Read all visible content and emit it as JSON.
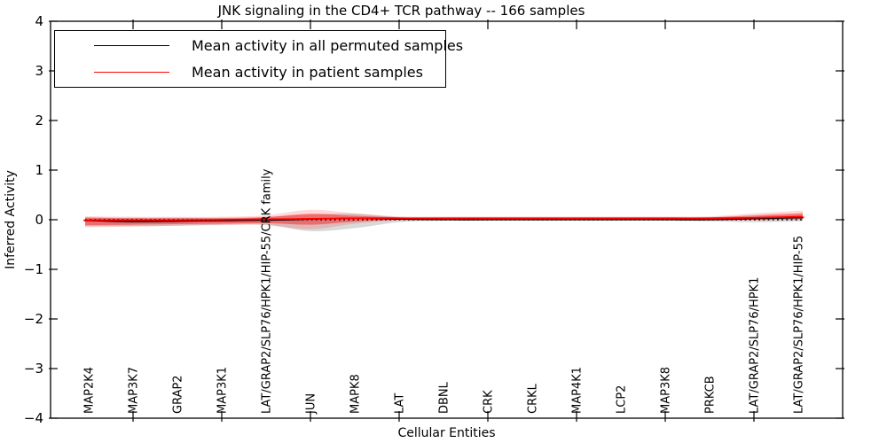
{
  "chart_data": {
    "type": "line",
    "title": "JNK signaling in the CD4+ TCR pathway -- 166 samples",
    "xlabel": "Cellular Entities",
    "ylabel": "Inferred Activity",
    "ylim": [
      -4,
      4
    ],
    "ytick_values": [
      4,
      3,
      2,
      1,
      0,
      -1,
      -2,
      -3,
      -4
    ],
    "ytick_labels": [
      "4",
      "3",
      "2",
      "1",
      "0",
      "−1",
      "−2",
      "−3",
      "−4"
    ],
    "grid": false,
    "background": "#ffffff",
    "legend_position": "upper left",
    "zero_line": {
      "value": 0,
      "style": "dotted",
      "color": "#000000"
    },
    "categories": [
      "MAP2K4",
      "MAP3K7",
      "GRAP2",
      "MAP3K1",
      "LAT/GRAP2/SLP76/HPK1/HIP-55/CRK family",
      "JUN",
      "MAPK8",
      "LAT",
      "DBNL",
      "CRK",
      "CRKL",
      "MAP4K1",
      "LCP2",
      "MAP3K8",
      "PRKCB",
      "LAT/GRAP2/SLP76/HPK1",
      "LAT/GRAP2/SLP76/HPK1/HIP-55"
    ],
    "xtick_indices": [
      1,
      3,
      5,
      7,
      9,
      11,
      13,
      15
    ],
    "series": [
      {
        "name": "Mean activity in all permuted samples",
        "color": "#000000",
        "band_color": "rgba(128,128,128,0.30)",
        "values": [
          -0.02,
          -0.04,
          -0.03,
          -0.02,
          -0.01,
          0.01,
          0.03,
          0.01,
          0.0,
          0.0,
          0.0,
          0.0,
          0.0,
          0.0,
          0.0,
          0.02,
          0.04
        ],
        "band_hi": [
          0.05,
          0.04,
          0.04,
          0.04,
          0.06,
          0.1,
          0.12,
          0.05,
          0.045,
          0.045,
          0.045,
          0.045,
          0.045,
          0.045,
          0.05,
          0.07,
          0.1
        ],
        "band_lo": [
          -0.13,
          -0.13,
          -0.12,
          -0.1,
          -0.1,
          -0.23,
          -0.17,
          -0.05,
          -0.02,
          -0.02,
          -0.02,
          -0.02,
          -0.02,
          -0.02,
          -0.03,
          -0.05,
          -0.03
        ]
      },
      {
        "name": "Mean activity in patient samples",
        "color": "#ff0000",
        "band_color": "rgba(255,0,0,0.40)",
        "outer_band_color": "rgba(255,0,0,0.15)",
        "values": [
          -0.01,
          -0.01,
          -0.01,
          0.0,
          0.01,
          0.02,
          0.03,
          0.03,
          0.03,
          0.03,
          0.03,
          0.03,
          0.03,
          0.03,
          0.03,
          0.04,
          0.06
        ],
        "band_hi": [
          0.04,
          0.03,
          0.03,
          0.03,
          0.05,
          0.12,
          0.08,
          0.05,
          0.05,
          0.05,
          0.05,
          0.05,
          0.05,
          0.05,
          0.05,
          0.09,
          0.13
        ],
        "band_lo": [
          -0.11,
          -0.1,
          -0.09,
          -0.08,
          -0.07,
          -0.1,
          -0.04,
          0.0,
          0.01,
          0.01,
          0.01,
          0.01,
          0.01,
          0.01,
          0.0,
          0.0,
          0.01
        ],
        "outer_hi": [
          0.07,
          0.06,
          0.06,
          0.06,
          0.09,
          0.2,
          0.13,
          0.07,
          0.065,
          0.065,
          0.065,
          0.065,
          0.065,
          0.065,
          0.07,
          0.13,
          0.18
        ],
        "outer_lo": [
          -0.15,
          -0.14,
          -0.12,
          -0.11,
          -0.11,
          -0.19,
          -0.08,
          -0.015,
          0.0,
          0.0,
          0.0,
          0.0,
          0.0,
          0.0,
          -0.01,
          -0.015,
          -0.005
        ]
      }
    ]
  },
  "legend": {
    "entries": [
      {
        "label": "Mean activity in all permuted samples",
        "color": "#000000"
      },
      {
        "label": "Mean activity in patient samples",
        "color": "#ff0000"
      }
    ]
  }
}
